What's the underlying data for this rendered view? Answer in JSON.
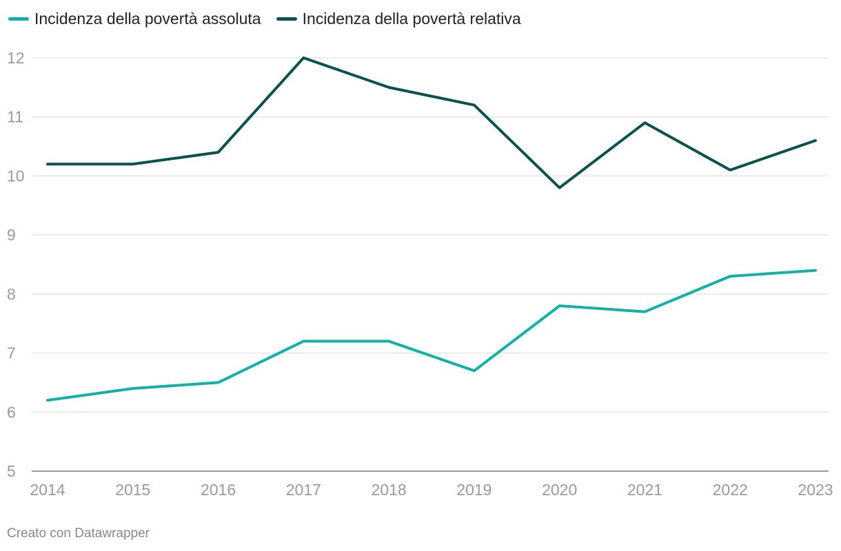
{
  "chart_data": {
    "type": "line",
    "x": [
      2014,
      2015,
      2016,
      2017,
      2018,
      2019,
      2020,
      2021,
      2022,
      2023
    ],
    "x_ticks": [
      "2014",
      "2015",
      "2016",
      "2017",
      "2018",
      "2019",
      "2020",
      "2021",
      "2022",
      "2023"
    ],
    "y_ticks": [
      "5",
      "6",
      "7",
      "8",
      "9",
      "10",
      "11",
      "12"
    ],
    "ylim": [
      5,
      12
    ],
    "grid": true,
    "legend_position": "top-left",
    "series": [
      {
        "name": "Incidenza della povertà assoluta",
        "color": "#13b1a4",
        "values": [
          6.2,
          6.4,
          6.5,
          7.2,
          7.2,
          6.7,
          7.8,
          7.7,
          8.3,
          8.4
        ]
      },
      {
        "name": "Incidenza della povertà relativa",
        "color": "#0a524b",
        "values": [
          10.2,
          10.2,
          10.4,
          12.0,
          11.5,
          11.2,
          9.8,
          10.9,
          10.1,
          10.6
        ]
      }
    ]
  },
  "footer": {
    "credit": "Creato con Datawrapper"
  }
}
